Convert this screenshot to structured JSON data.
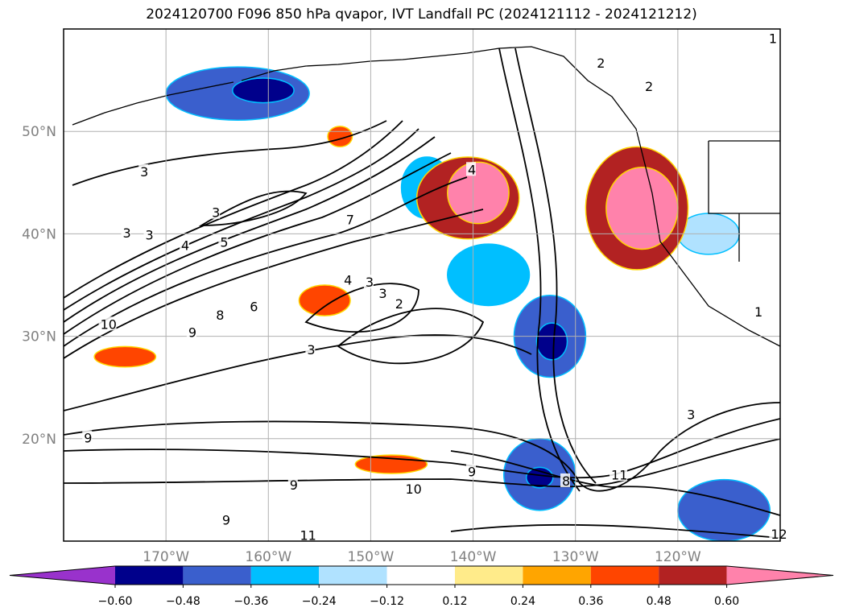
{
  "chart_data": {
    "type": "heatmap",
    "title": "2024120700 F096 850 hPa qvapor, IVT Landfall PC (2024121112 - 2024121212)",
    "projection_extent": {
      "lon": [
        -180,
        -110
      ],
      "lat": [
        10,
        60
      ]
    },
    "grid": true,
    "x_ticks": [
      {
        "value": -170,
        "label": "170°W"
      },
      {
        "value": -160,
        "label": "160°W"
      },
      {
        "value": -150,
        "label": "150°W"
      },
      {
        "value": -140,
        "label": "140°W"
      },
      {
        "value": -130,
        "label": "130°W"
      },
      {
        "value": -120,
        "label": "120°W"
      }
    ],
    "y_ticks": [
      {
        "value": 50,
        "label": "50°N"
      },
      {
        "value": 40,
        "label": "40°N"
      },
      {
        "value": 30,
        "label": "30°N"
      },
      {
        "value": 20,
        "label": "20°N"
      }
    ],
    "colorbar": {
      "levels": [
        -0.72,
        -0.6,
        -0.48,
        -0.36,
        -0.24,
        -0.12,
        0.12,
        0.24,
        0.36,
        0.48,
        0.6,
        0.72
      ],
      "tick_labels": [
        "−0.60",
        "−0.48",
        "−0.36",
        "−0.24",
        "−0.12",
        "0.12",
        "0.24",
        "0.36",
        "0.48",
        "0.60"
      ],
      "colors": [
        "#9932cc",
        "#00008b",
        "#3a5fcd",
        "#00bfff",
        "#b0e2ff",
        "#ffffff",
        "#ffeb8a",
        "#ffa500",
        "#ff4500",
        "#b22222",
        "#ff82ab"
      ],
      "extend": "both"
    },
    "shaded_regions": [
      {
        "value": -0.48,
        "lon": -163,
        "lat": 53.7,
        "rlon": 7,
        "rlat": 2.6
      },
      {
        "value": -0.6,
        "lon": -160.5,
        "lat": 54,
        "rlon": 3,
        "rlat": 1.2
      },
      {
        "value": -0.36,
        "lon": -144.5,
        "lat": 44.5,
        "rlon": 2.5,
        "rlat": 3
      },
      {
        "value": -0.36,
        "lon": -138.5,
        "lat": 36,
        "rlon": 4,
        "rlat": 3
      },
      {
        "value": -0.48,
        "lon": -132.5,
        "lat": 30,
        "rlon": 3.5,
        "rlat": 4
      },
      {
        "value": -0.6,
        "lon": -132.3,
        "lat": 29.5,
        "rlon": 1.5,
        "rlat": 1.8
      },
      {
        "value": -0.48,
        "lon": -133.5,
        "lat": 16.5,
        "rlon": 3.5,
        "rlat": 3.5
      },
      {
        "value": -0.6,
        "lon": -133.5,
        "lat": 16.2,
        "rlon": 1.3,
        "rlat": 1
      },
      {
        "value": -0.48,
        "lon": -115.5,
        "lat": 13,
        "rlon": 4.5,
        "rlat": 3
      },
      {
        "value": -0.24,
        "lon": -117,
        "lat": 40,
        "rlon": 3,
        "rlat": 2
      },
      {
        "value": 0.48,
        "lon": -140.5,
        "lat": 43.5,
        "rlon": 5,
        "rlat": 4
      },
      {
        "value": 0.6,
        "lon": -139.5,
        "lat": 44,
        "rlon": 3,
        "rlat": 3
      },
      {
        "value": 0.48,
        "lon": -124,
        "lat": 42.5,
        "rlon": 5,
        "rlat": 6
      },
      {
        "value": 0.6,
        "lon": -123.5,
        "lat": 42.5,
        "rlon": 3.5,
        "rlat": 4
      },
      {
        "value": 0.36,
        "lon": -154.5,
        "lat": 33.5,
        "rlon": 2.5,
        "rlat": 1.5
      },
      {
        "value": 0.36,
        "lon": -153,
        "lat": 49.5,
        "rlon": 1.2,
        "rlat": 1
      },
      {
        "value": 0.36,
        "lon": -174,
        "lat": 28,
        "rlon": 3,
        "rlat": 1
      },
      {
        "value": 0.36,
        "lon": -148,
        "lat": 17.5,
        "rlon": 3.5,
        "rlat": 0.9
      }
    ],
    "contours": {
      "levels_labeled": [
        "1",
        "2",
        "3",
        "4",
        "5",
        "6",
        "7",
        "8",
        "9",
        "10",
        "11",
        "12"
      ],
      "labels": [
        {
          "text": "3",
          "lon": -172.2,
          "lat": 46.1
        },
        {
          "text": "3",
          "lon": -165.2,
          "lat": 42.1
        },
        {
          "text": "3",
          "lon": -173.9,
          "lat": 40.1
        },
        {
          "text": "3",
          "lon": -171.7,
          "lat": 39.9
        },
        {
          "text": "4",
          "lon": -168.2,
          "lat": 38.9
        },
        {
          "text": "5",
          "lon": -164.4,
          "lat": 39.2
        },
        {
          "text": "7",
          "lon": -152.1,
          "lat": 41.4
        },
        {
          "text": "4",
          "lon": -140.2,
          "lat": 46.3
        },
        {
          "text": "2",
          "lon": -127.6,
          "lat": 56.7
        },
        {
          "text": "2",
          "lon": -122.9,
          "lat": 54.4
        },
        {
          "text": "4",
          "lon": -152.3,
          "lat": 35.5
        },
        {
          "text": "3",
          "lon": -150.2,
          "lat": 35.3
        },
        {
          "text": "3",
          "lon": -148.9,
          "lat": 34.2
        },
        {
          "text": "2",
          "lon": -147.3,
          "lat": 33.2
        },
        {
          "text": "6",
          "lon": -161.5,
          "lat": 32.9
        },
        {
          "text": "8",
          "lon": -164.8,
          "lat": 32.1
        },
        {
          "text": "9",
          "lon": -167.5,
          "lat": 30.4
        },
        {
          "text": "10",
          "lon": -176.1,
          "lat": 31.2
        },
        {
          "text": "3",
          "lon": -155.9,
          "lat": 28.7
        },
        {
          "text": "3",
          "lon": -118.8,
          "lat": 22.4
        },
        {
          "text": "9",
          "lon": -177.7,
          "lat": 20.1
        },
        {
          "text": "9",
          "lon": -140.2,
          "lat": 16.8
        },
        {
          "text": "8",
          "lon": -131,
          "lat": 15.9
        },
        {
          "text": "11",
          "lon": -126.2,
          "lat": 16.5
        },
        {
          "text": "10",
          "lon": -146.3,
          "lat": 15.1
        },
        {
          "text": "9",
          "lon": -157.6,
          "lat": 15.5
        },
        {
          "text": "9",
          "lon": -164.2,
          "lat": 12.1
        },
        {
          "text": "11",
          "lon": -156.6,
          "lat": 10.6
        },
        {
          "text": "12",
          "lon": -110.6,
          "lat": 10.7
        },
        {
          "text": "1",
          "lon": -110.8,
          "lat": 59.1
        },
        {
          "text": "1",
          "lon": -112.2,
          "lat": 32.4
        }
      ]
    }
  }
}
